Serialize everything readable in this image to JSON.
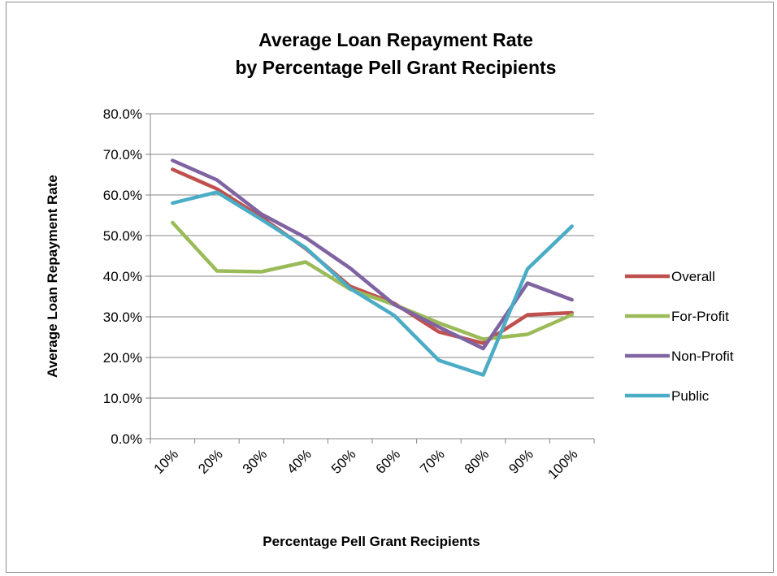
{
  "chart_data": {
    "type": "line",
    "title": [
      "Average Loan Repayment Rate",
      "by Percentage Pell Grant Recipients"
    ],
    "xlabel": "Percentage Pell Grant Recipients",
    "ylabel": "Average Loan Repayment Rate",
    "categories": [
      "10%",
      "20%",
      "30%",
      "40%",
      "50%",
      "60%",
      "70%",
      "80%",
      "90%",
      "100%"
    ],
    "ylim": [
      0,
      0.8
    ],
    "yticks": [
      0,
      0.1,
      0.2,
      0.3,
      0.4,
      0.5,
      0.6,
      0.7,
      0.8
    ],
    "ytick_labels": [
      "0.0%",
      "10.0%",
      "20.0%",
      "30.0%",
      "40.0%",
      "50.0%",
      "60.0%",
      "70.0%",
      "80.0%"
    ],
    "grid": true,
    "legend_position": "right",
    "series": [
      {
        "name": "Overall",
        "color": "#c0504d",
        "values": [
          0.663,
          0.615,
          0.545,
          0.468,
          0.375,
          0.333,
          0.263,
          0.235,
          0.305,
          0.31
        ]
      },
      {
        "name": "For-Profit",
        "color": "#9bbb59",
        "values": [
          0.532,
          0.413,
          0.411,
          0.435,
          0.368,
          0.33,
          0.285,
          0.245,
          0.257,
          0.305
        ]
      },
      {
        "name": "Non-Profit",
        "color": "#8064a2",
        "values": [
          0.685,
          0.637,
          0.553,
          0.495,
          0.42,
          0.33,
          0.275,
          0.222,
          0.383,
          0.342
        ]
      },
      {
        "name": "Public",
        "color": "#4bacc6",
        "values": [
          0.58,
          0.607,
          0.54,
          0.47,
          0.37,
          0.303,
          0.193,
          0.157,
          0.418,
          0.523
        ]
      }
    ]
  }
}
